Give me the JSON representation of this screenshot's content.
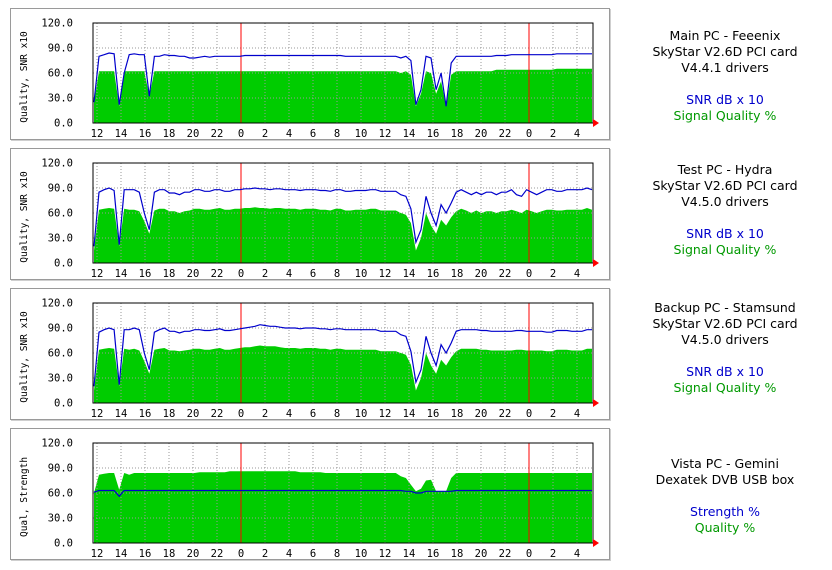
{
  "colors": {
    "snr": "#0000cc",
    "quality": "#00cc00",
    "grid": "#9a9a9a",
    "marker": "#ff0000"
  },
  "chart_data": [
    {
      "type": "area",
      "ylabel": "Quality, SNR x10",
      "ylim": [
        0,
        120
      ],
      "y_ticks": [
        "120.0",
        "90.0",
        "60.0",
        "30.0",
        "0.0"
      ],
      "x_ticks": [
        "12",
        "14",
        "16",
        "18",
        "20",
        "22",
        "0",
        "2",
        "4",
        "6",
        "8",
        "10",
        "12",
        "14",
        "16",
        "18",
        "20",
        "22",
        "0",
        "2",
        "4"
      ],
      "midnight_markers": [
        "0",
        "0"
      ],
      "legend": {
        "lines": [
          "Main PC - Feeenix",
          "SkyStar V2.6D PCI card",
          "V4.4.1 drivers"
        ],
        "series_labels": [
          "SNR dB x 10",
          "Signal Quality %"
        ]
      },
      "series": [
        {
          "name": "SNR dB x 10",
          "style": "line",
          "color": "#0000cc",
          "values": [
            25,
            80,
            82,
            84,
            83,
            22,
            60,
            82,
            83,
            82,
            82,
            32,
            80,
            80,
            82,
            81,
            81,
            80,
            80,
            78,
            78,
            79,
            80,
            79,
            80,
            80,
            80,
            80,
            80,
            80,
            81,
            81,
            81,
            81,
            81,
            81,
            81,
            81,
            81,
            81,
            81,
            81,
            81,
            81,
            81,
            81,
            81,
            81,
            81,
            81,
            80,
            80,
            80,
            80,
            80,
            80,
            80,
            80,
            80,
            80,
            80,
            78,
            80,
            75,
            22,
            40,
            80,
            78,
            40,
            60,
            20,
            72,
            80,
            80,
            80,
            80,
            80,
            80,
            80,
            80,
            81,
            81,
            81,
            82,
            82,
            82,
            82,
            82,
            82,
            82,
            82,
            82,
            83,
            83,
            83,
            83,
            83,
            83,
            83,
            83
          ]
        },
        {
          "name": "Signal Quality %",
          "style": "area",
          "color": "#00cc00",
          "values": [
            25,
            62,
            62,
            62,
            62,
            20,
            62,
            62,
            62,
            62,
            62,
            32,
            62,
            62,
            62,
            62,
            62,
            62,
            62,
            62,
            62,
            62,
            62,
            62,
            62,
            62,
            62,
            62,
            62,
            62,
            62,
            62,
            62,
            62,
            62,
            62,
            62,
            62,
            62,
            62,
            62,
            62,
            62,
            62,
            62,
            62,
            62,
            62,
            62,
            62,
            62,
            62,
            62,
            62,
            62,
            62,
            62,
            62,
            62,
            62,
            62,
            60,
            62,
            58,
            20,
            35,
            62,
            60,
            35,
            50,
            20,
            58,
            62,
            62,
            62,
            62,
            62,
            62,
            62,
            62,
            64,
            64,
            64,
            64,
            64,
            64,
            64,
            64,
            64,
            64,
            64,
            64,
            65,
            65,
            65,
            65,
            65,
            65,
            65,
            65
          ]
        }
      ]
    },
    {
      "type": "area",
      "ylabel": "Quality, SNR x10",
      "ylim": [
        0,
        120
      ],
      "y_ticks": [
        "120.0",
        "90.0",
        "60.0",
        "30.0",
        "0.0"
      ],
      "x_ticks": [
        "12",
        "14",
        "16",
        "18",
        "20",
        "22",
        "0",
        "2",
        "4",
        "6",
        "8",
        "10",
        "12",
        "14",
        "16",
        "18",
        "20",
        "22",
        "0",
        "2",
        "4"
      ],
      "midnight_markers": [
        "0",
        "0"
      ],
      "legend": {
        "lines": [
          "Test PC - Hydra",
          "SkyStar V2.6D PCI card",
          "V4.5.0 drivers"
        ],
        "series_labels": [
          "SNR dB x 10",
          "Signal Quality %"
        ]
      },
      "series": [
        {
          "name": "SNR dB x 10",
          "style": "line",
          "color": "#0000cc",
          "values": [
            20,
            85,
            88,
            90,
            87,
            22,
            88,
            88,
            88,
            85,
            60,
            40,
            85,
            88,
            88,
            84,
            84,
            82,
            85,
            85,
            88,
            88,
            86,
            86,
            88,
            88,
            86,
            86,
            88,
            88,
            89,
            89,
            90,
            89,
            89,
            88,
            89,
            89,
            88,
            88,
            88,
            87,
            88,
            88,
            88,
            87,
            87,
            86,
            88,
            88,
            86,
            86,
            87,
            87,
            87,
            88,
            88,
            86,
            86,
            86,
            86,
            82,
            80,
            65,
            25,
            40,
            80,
            60,
            45,
            70,
            60,
            72,
            85,
            88,
            85,
            82,
            85,
            82,
            85,
            85,
            82,
            85,
            85,
            88,
            82,
            80,
            88,
            85,
            82,
            85,
            88,
            88,
            86,
            86,
            88,
            88,
            88,
            88,
            90,
            88
          ]
        },
        {
          "name": "Signal Quality %",
          "style": "area",
          "color": "#00cc00",
          "values": [
            15,
            64,
            65,
            66,
            65,
            20,
            65,
            64,
            64,
            62,
            50,
            35,
            63,
            65,
            65,
            62,
            62,
            60,
            62,
            63,
            65,
            65,
            64,
            64,
            65,
            66,
            64,
            64,
            65,
            65,
            66,
            66,
            67,
            66,
            66,
            65,
            66,
            66,
            65,
            65,
            65,
            64,
            65,
            65,
            65,
            64,
            64,
            63,
            65,
            65,
            63,
            63,
            64,
            64,
            64,
            65,
            65,
            63,
            63,
            63,
            63,
            60,
            58,
            48,
            15,
            30,
            60,
            45,
            35,
            52,
            45,
            55,
            62,
            65,
            63,
            60,
            63,
            60,
            62,
            62,
            60,
            62,
            62,
            64,
            62,
            60,
            64,
            62,
            60,
            62,
            64,
            64,
            63,
            63,
            64,
            64,
            64,
            64,
            66,
            64
          ]
        }
      ]
    },
    {
      "type": "area",
      "ylabel": "Quality, SNR x10",
      "ylim": [
        0,
        120
      ],
      "y_ticks": [
        "120.0",
        "90.0",
        "60.0",
        "30.0",
        "0.0"
      ],
      "x_ticks": [
        "12",
        "14",
        "16",
        "18",
        "20",
        "22",
        "0",
        "2",
        "4",
        "6",
        "8",
        "10",
        "12",
        "14",
        "16",
        "18",
        "20",
        "22",
        "0",
        "2",
        "4"
      ],
      "midnight_markers": [
        "0",
        "0"
      ],
      "legend": {
        "lines": [
          "Backup PC - Stamsund",
          "SkyStar V2.6D PCI card",
          "V4.5.0 drivers"
        ],
        "series_labels": [
          "SNR dB x 10",
          "Signal Quality %"
        ]
      },
      "series": [
        {
          "name": "SNR dB x 10",
          "style": "line",
          "color": "#0000cc",
          "values": [
            20,
            85,
            88,
            90,
            88,
            22,
            88,
            88,
            90,
            88,
            60,
            40,
            85,
            88,
            90,
            86,
            86,
            84,
            86,
            86,
            88,
            88,
            87,
            87,
            88,
            89,
            87,
            87,
            88,
            89,
            90,
            91,
            92,
            94,
            93,
            92,
            92,
            91,
            90,
            90,
            90,
            89,
            90,
            90,
            90,
            89,
            89,
            88,
            89,
            89,
            88,
            88,
            88,
            88,
            88,
            88,
            88,
            86,
            86,
            86,
            86,
            82,
            80,
            62,
            25,
            40,
            80,
            60,
            45,
            70,
            60,
            72,
            86,
            88,
            88,
            88,
            88,
            87,
            87,
            86,
            86,
            86,
            86,
            86,
            87,
            87,
            86,
            86,
            86,
            86,
            85,
            85,
            87,
            87,
            87,
            86,
            86,
            86,
            88,
            88
          ]
        },
        {
          "name": "Signal Quality %",
          "style": "area",
          "color": "#00cc00",
          "values": [
            15,
            64,
            65,
            66,
            65,
            20,
            65,
            64,
            65,
            63,
            50,
            35,
            64,
            65,
            66,
            63,
            63,
            62,
            63,
            64,
            65,
            65,
            64,
            64,
            65,
            66,
            64,
            64,
            65,
            66,
            67,
            67,
            68,
            69,
            68,
            68,
            68,
            67,
            66,
            66,
            66,
            65,
            66,
            66,
            66,
            65,
            65,
            64,
            65,
            65,
            64,
            64,
            64,
            64,
            64,
            64,
            64,
            62,
            62,
            62,
            62,
            60,
            58,
            46,
            15,
            30,
            60,
            45,
            35,
            52,
            45,
            55,
            62,
            65,
            65,
            65,
            65,
            64,
            64,
            63,
            63,
            63,
            63,
            63,
            64,
            64,
            63,
            63,
            63,
            63,
            62,
            62,
            64,
            64,
            64,
            63,
            63,
            63,
            65,
            65
          ]
        }
      ]
    },
    {
      "type": "area",
      "ylabel": "Qual, Strength",
      "ylim": [
        0,
        120
      ],
      "y_ticks": [
        "120.0",
        "90.0",
        "60.0",
        "30.0",
        "0.0"
      ],
      "x_ticks": [
        "12",
        "14",
        "16",
        "18",
        "20",
        "22",
        "0",
        "2",
        "4",
        "6",
        "8",
        "10",
        "12",
        "14",
        "16",
        "18",
        "20",
        "22",
        "0",
        "2",
        "4"
      ],
      "midnight_markers": [
        "0",
        "0"
      ],
      "legend": {
        "lines": [
          "Vista PC - Gemini",
          "Dexatek DVB USB box"
        ],
        "series_labels": [
          "Strength %",
          "Quality %"
        ]
      },
      "series": [
        {
          "name": "Strength %",
          "style": "line",
          "color": "#0000cc",
          "values": [
            61,
            63,
            63,
            63,
            63,
            56,
            63,
            63,
            63,
            63,
            63,
            63,
            63,
            63,
            63,
            63,
            63,
            63,
            63,
            63,
            63,
            63,
            63,
            63,
            63,
            63,
            63,
            63,
            63,
            63,
            63,
            63,
            63,
            63,
            63,
            63,
            63,
            63,
            63,
            63,
            63,
            63,
            63,
            63,
            63,
            63,
            63,
            63,
            63,
            63,
            63,
            63,
            63,
            63,
            63,
            63,
            63,
            63,
            63,
            63,
            63,
            63,
            62,
            62,
            60,
            60,
            62,
            62,
            62,
            62,
            62,
            62,
            63,
            63,
            63,
            63,
            63,
            63,
            63,
            63,
            63,
            63,
            63,
            63,
            63,
            63,
            63,
            63,
            63,
            63,
            63,
            63,
            63,
            63,
            63,
            63,
            63,
            63,
            63,
            63
          ]
        },
        {
          "name": "Quality %",
          "style": "area",
          "color": "#00cc00",
          "values": [
            60,
            82,
            83,
            84,
            84,
            64,
            84,
            82,
            84,
            84,
            84,
            84,
            84,
            84,
            84,
            84,
            84,
            84,
            84,
            84,
            84,
            85,
            85,
            85,
            85,
            85,
            85,
            86,
            86,
            86,
            86,
            86,
            86,
            86,
            86,
            86,
            86,
            86,
            86,
            86,
            86,
            85,
            85,
            85,
            85,
            85,
            84,
            84,
            84,
            84,
            84,
            84,
            84,
            84,
            84,
            84,
            84,
            84,
            84,
            84,
            84,
            80,
            78,
            70,
            62,
            65,
            75,
            76,
            62,
            62,
            62,
            78,
            84,
            84,
            84,
            84,
            84,
            84,
            84,
            84,
            84,
            84,
            84,
            84,
            84,
            84,
            84,
            84,
            84,
            84,
            84,
            84,
            84,
            84,
            84,
            84,
            84,
            84,
            84,
            84
          ]
        }
      ]
    }
  ]
}
